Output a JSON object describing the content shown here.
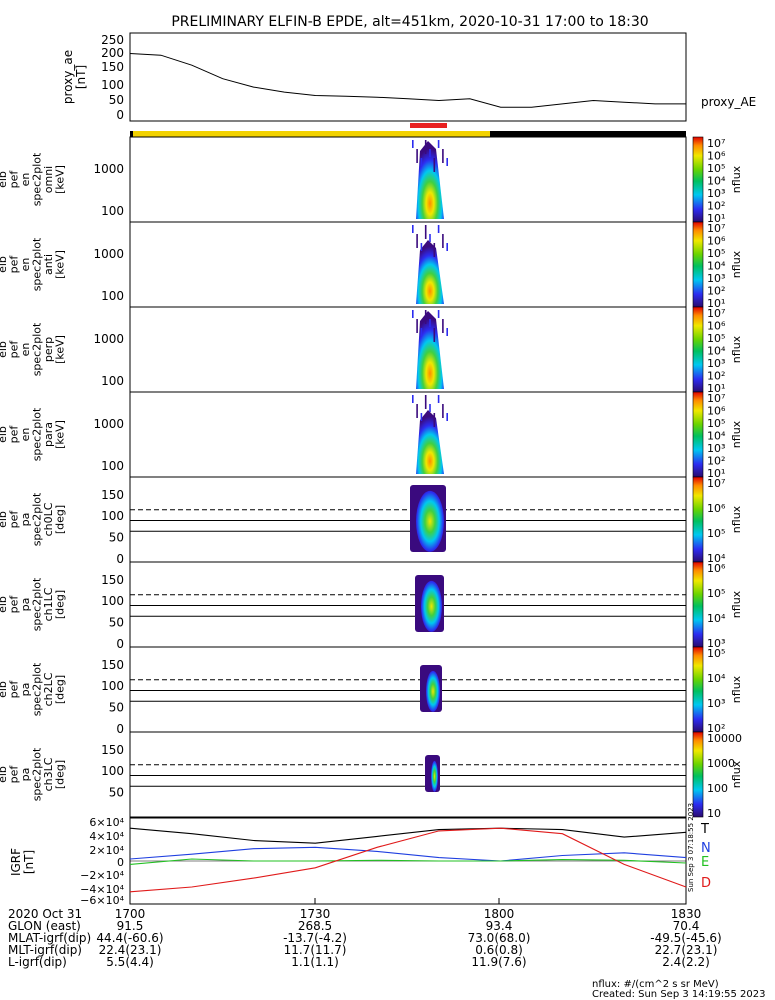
{
  "title": "PRELIMINARY ELFIN-B EPDE, alt=451km, 2020-10-31 17:00 to 18:30",
  "bar_colors": {
    "science": "#f2d200",
    "selected": "#e82020",
    "eclipse": "#000000"
  },
  "ae_panel": {
    "ylabel": [
      "proxy_ae",
      "[nT]"
    ],
    "yticks": [
      "250",
      "200",
      "150",
      "100",
      "50",
      "0"
    ],
    "legend": "proxy_AE"
  },
  "spec_panels": [
    {
      "ylabel": [
        "elb",
        "pef",
        "en",
        "spec2plot",
        "omni",
        "[keV]"
      ],
      "yticks": [
        "1000",
        "100"
      ],
      "cbar_ticks": [
        "10⁷",
        "10⁶",
        "10⁵",
        "10⁴",
        "10³",
        "10²",
        "10¹"
      ],
      "cbar_label": "nflux"
    },
    {
      "ylabel": [
        "elb",
        "pef",
        "en",
        "spec2plot",
        "anti",
        "[keV]"
      ],
      "yticks": [
        "1000",
        "100"
      ],
      "cbar_ticks": [
        "10⁷",
        "10⁶",
        "10⁵",
        "10⁴",
        "10³",
        "10²",
        "10¹"
      ],
      "cbar_label": "nflux"
    },
    {
      "ylabel": [
        "elb",
        "pef",
        "en",
        "spec2plot",
        "perp",
        "[keV]"
      ],
      "yticks": [
        "1000",
        "100"
      ],
      "cbar_ticks": [
        "10⁷",
        "10⁶",
        "10⁵",
        "10⁴",
        "10³",
        "10²",
        "10¹"
      ],
      "cbar_label": "nflux"
    },
    {
      "ylabel": [
        "elb",
        "pef",
        "en",
        "spec2plot",
        "para",
        "[keV]"
      ],
      "yticks": [
        "1000",
        "100"
      ],
      "cbar_ticks": [
        "10⁷",
        "10⁶",
        "10⁵",
        "10⁴",
        "10³",
        "10²",
        "10¹"
      ],
      "cbar_label": "nflux"
    }
  ],
  "pa_panels": [
    {
      "ylabel": [
        "elb",
        "pef",
        "pa",
        "spec2plot",
        "ch0LC",
        "[deg]"
      ],
      "yticks": [
        "150",
        "100",
        "50",
        "0"
      ],
      "cbar_ticks": [
        "10⁷",
        "10⁶",
        "10⁵",
        "10⁴"
      ],
      "cbar_label": "nflux"
    },
    {
      "ylabel": [
        "elb",
        "pef",
        "pa",
        "spec2plot",
        "ch1LC",
        "[deg]"
      ],
      "yticks": [
        "150",
        "100",
        "50",
        "0"
      ],
      "cbar_ticks": [
        "10⁶",
        "10⁵",
        "10⁴",
        "10³"
      ],
      "cbar_label": "nflux"
    },
    {
      "ylabel": [
        "elb",
        "pef",
        "pa",
        "spec2plot",
        "ch2LC",
        "[deg]"
      ],
      "yticks": [
        "150",
        "100",
        "50",
        "0"
      ],
      "cbar_ticks": [
        "10⁵",
        "10⁴",
        "10³",
        "10²"
      ],
      "cbar_label": "nflux"
    },
    {
      "ylabel": [
        "elb",
        "pef",
        "pa",
        "spec2plot",
        "ch3LC",
        "[deg]"
      ],
      "yticks": [
        "150",
        "100",
        "50"
      ],
      "cbar_ticks": [
        "10000",
        "1000",
        "100",
        "10"
      ],
      "cbar_label": "nflux"
    }
  ],
  "igrf_panel": {
    "ylabel": [
      "IGRF",
      "[nT]"
    ],
    "yticks": [
      "6×10⁴",
      "4×10⁴",
      "2×10⁴",
      "0",
      "−2×10⁴",
      "−4×10⁴",
      "−6×10⁴"
    ],
    "legend": [
      {
        "label": "T",
        "color": "#000000"
      },
      {
        "label": "N",
        "color": "#1f3fe0"
      },
      {
        "label": "E",
        "color": "#22c022"
      },
      {
        "label": "D",
        "color": "#e01a1a"
      }
    ],
    "side_note": "Sun Sep  3 07:18:55 2023"
  },
  "x_axis": {
    "rows": [
      {
        "label": "2020 Oct 31",
        "values": [
          "1700",
          "1730",
          "1800",
          "1830"
        ]
      },
      {
        "label": "GLON (east)",
        "values": [
          "91.5",
          "268.5",
          "93.4",
          "70.4"
        ]
      },
      {
        "label": "MLAT-igrf(dip)",
        "values": [
          "44.4(-60.6)",
          "-13.7(-4.2)",
          "73.0(68.0)",
          "-49.5(-45.6)"
        ]
      },
      {
        "label": "MLT-igrf(dip)",
        "values": [
          "22.4(23.1)",
          "11.7(11.7)",
          "0.6(0.8)",
          "22.7(23.1)"
        ]
      },
      {
        "label": "L-igrf(dip)",
        "values": [
          "5.5(4.4)",
          "1.1(1.1)",
          "11.9(7.6)",
          "2.4(2.2)"
        ]
      }
    ]
  },
  "footer": {
    "units": "nflux: #/(cm^2 s sr MeV)",
    "created": "Created: Sun Sep  3 14:19:55 2023"
  },
  "chart_data": [
    {
      "type": "line",
      "name": "proxy_ae",
      "x": [
        "17:00",
        "17:05",
        "17:10",
        "17:15",
        "17:20",
        "17:25",
        "17:30",
        "17:35",
        "17:40",
        "17:45",
        "17:50",
        "17:55",
        "18:00",
        "18:05",
        "18:10",
        "18:15",
        "18:20",
        "18:25",
        "18:30"
      ],
      "series": [
        {
          "name": "proxy_AE",
          "values": [
            195,
            190,
            160,
            120,
            95,
            80,
            70,
            68,
            65,
            60,
            55,
            60,
            35,
            35,
            45,
            55,
            50,
            45,
            45
          ]
        }
      ],
      "ylim": [
        0,
        250
      ]
    },
    {
      "type": "line",
      "name": "igrf",
      "x": [
        "17:00",
        "17:10",
        "17:20",
        "17:30",
        "17:40",
        "17:50",
        "18:00",
        "18:10",
        "18:20",
        "18:30"
      ],
      "series": [
        {
          "name": "T",
          "values": [
            48000,
            40000,
            30000,
            26000,
            36000,
            46000,
            48000,
            46000,
            35000,
            42000
          ]
        },
        {
          "name": "N",
          "values": [
            3000,
            10000,
            18000,
            20000,
            14000,
            5000,
            0,
            8000,
            12000,
            5000
          ]
        },
        {
          "name": "E",
          "values": [
            -5000,
            3000,
            0,
            0,
            1000,
            0,
            0,
            2000,
            1000,
            -3000
          ]
        },
        {
          "name": "D",
          "values": [
            -45000,
            -38000,
            -25000,
            -10000,
            20000,
            44000,
            48000,
            40000,
            -5000,
            -38000
          ]
        }
      ],
      "ylim": [
        -60000,
        60000
      ]
    }
  ]
}
